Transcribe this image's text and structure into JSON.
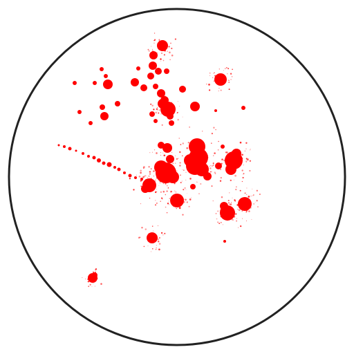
{
  "colors": {
    "background": "#ffffff",
    "ring": "#222222",
    "splatter": "#ff0000"
  },
  "subject": {
    "ring_icon": "circle-outline-icon",
    "splatter_icon": "red-paint-splatter-icon"
  }
}
